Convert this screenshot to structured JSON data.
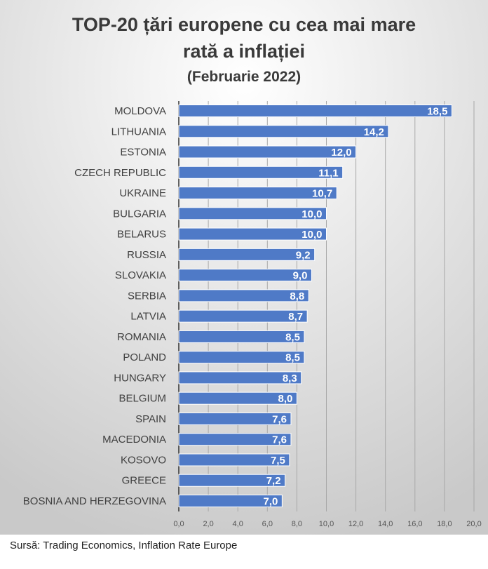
{
  "chart_data": {
    "type": "bar",
    "orientation": "horizontal",
    "title_lines": [
      "TOP-20 țări europene cu cea mai mare",
      "rată a inflației"
    ],
    "subtitle": "(Februarie 2022)",
    "categories": [
      "MOLDOVA",
      "LITHUANIA",
      "ESTONIA",
      "CZECH REPUBLIC",
      "UKRAINE",
      "BULGARIA",
      "BELARUS",
      "RUSSIA",
      "SLOVAKIA",
      "SERBIA",
      "LATVIA",
      "ROMANIA",
      "POLAND",
      "HUNGARY",
      "BELGIUM",
      "SPAIN",
      "MACEDONIA",
      "KOSOVO",
      "GREECE",
      "BOSNIA AND HERZEGOVINA"
    ],
    "values": [
      18.5,
      14.2,
      12.0,
      11.1,
      10.7,
      10.0,
      10.0,
      9.2,
      9.0,
      8.8,
      8.7,
      8.5,
      8.5,
      8.3,
      8.0,
      7.6,
      7.6,
      7.5,
      7.2,
      7.0
    ],
    "data_labels": [
      "18,5",
      "14,2",
      "12,0",
      "11,1",
      "10,7",
      "10,0",
      "10,0",
      "9,2",
      "9,0",
      "8,8",
      "8,7",
      "8,5",
      "8,5",
      "8,3",
      "8,0",
      "7,6",
      "7,6",
      "7,5",
      "7,2",
      "7,0"
    ],
    "xlim": [
      0,
      20
    ],
    "xticks": [
      "0,0",
      "2,0",
      "4,0",
      "6,0",
      "8,0",
      "10,0",
      "12,0",
      "14,0",
      "16,0",
      "18,0",
      "20,0"
    ],
    "grid": true,
    "bar_color": "#4f7ac7",
    "background": "light gray gradient"
  },
  "source": "Sursă: Trading Economics, Inflation Rate Europe"
}
